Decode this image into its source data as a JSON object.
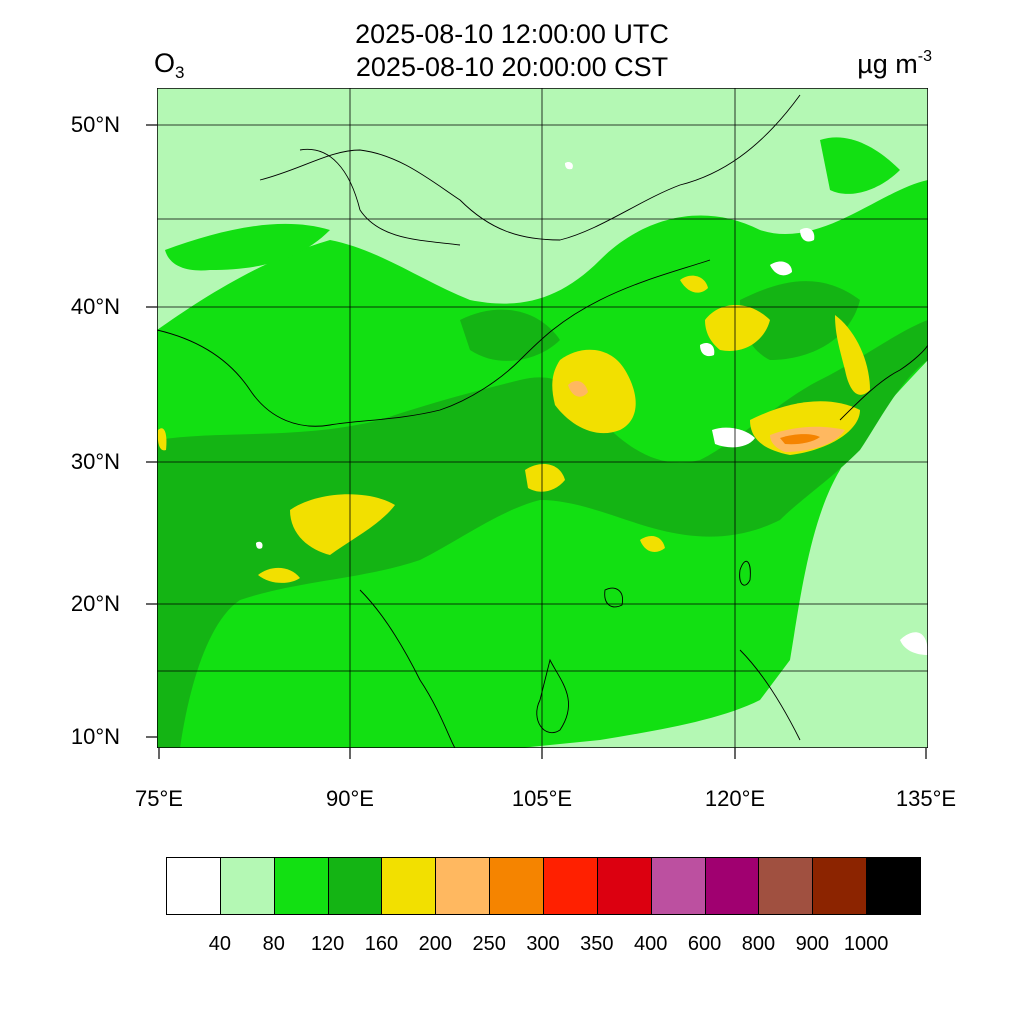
{
  "title": {
    "line1": "2025-08-10 12:00:00 UTC",
    "line2": "2025-08-10 20:00:00 CST",
    "variable_main": "O",
    "variable_sub": "3",
    "units_main": "µg m",
    "units_sup": "-3"
  },
  "map": {
    "lon_range": [
      75,
      135
    ],
    "lat_range": [
      9,
      52
    ],
    "lat_ticks": [
      {
        "value": 50,
        "label": "50°N"
      },
      {
        "value": 40,
        "label": "40°N"
      },
      {
        "value": 30,
        "label": "30°N"
      },
      {
        "value": 20,
        "label": "20°N"
      },
      {
        "value": 10,
        "label": "10°N"
      }
    ],
    "lon_ticks": [
      {
        "value": 75,
        "label": "75°E"
      },
      {
        "value": 90,
        "label": "90°E"
      },
      {
        "value": 105,
        "label": "105°E"
      },
      {
        "value": 120,
        "label": "120°E"
      },
      {
        "value": 135,
        "label": "135°E"
      }
    ],
    "background_color": "#b4f8b4"
  },
  "colorbar": {
    "colors": [
      "#ffffff",
      "#b4f8b4",
      "#12e012",
      "#14b414",
      "#f2e000",
      "#ffb860",
      "#f58400",
      "#ff2000",
      "#dc0010",
      "#bc50a0",
      "#a00070",
      "#a05040",
      "#8c2400",
      "#000000"
    ],
    "labels": [
      "40",
      "80",
      "120",
      "160",
      "200",
      "250",
      "300",
      "350",
      "400",
      "600",
      "800",
      "900",
      "1000"
    ]
  }
}
